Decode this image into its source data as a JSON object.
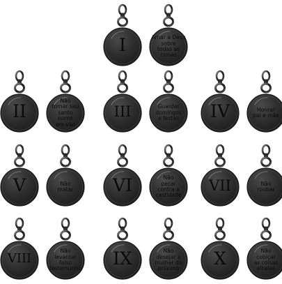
{
  "commandments": [
    {
      "numeral": "I",
      "text": "Amar a Deus\nsobre\ntodas as\ncoisas"
    },
    {
      "numeral": "II",
      "text": "Não\ntomar seu\nsanto\nnome\nem vão"
    },
    {
      "numeral": "III",
      "text": "Guardar\ndomingos\ne festas"
    },
    {
      "numeral": "IV",
      "text": "Honrar\npai e mãe"
    },
    {
      "numeral": "V",
      "text": "Não\nmatar"
    },
    {
      "numeral": "VI",
      "text": "Não\npecar\ncontra a\ncastidade"
    },
    {
      "numeral": "VII",
      "text": "Não\nroubar"
    },
    {
      "numeral": "VIII",
      "text": "Não\nlevantar\nfalso\ntestemunho"
    },
    {
      "numeral": "IX",
      "text": "Não\ndesejar a\nmulher do\npróximo"
    },
    {
      "numeral": "X",
      "text": "Não\ncobiçar\nas coisas\nalhelas"
    }
  ],
  "colors": {
    "metal_dark": "#1c1c1c",
    "metal_mid": "#4a4a4a",
    "metal_light": "#8a8a8a",
    "metal_edge": "#2e2e2e"
  }
}
